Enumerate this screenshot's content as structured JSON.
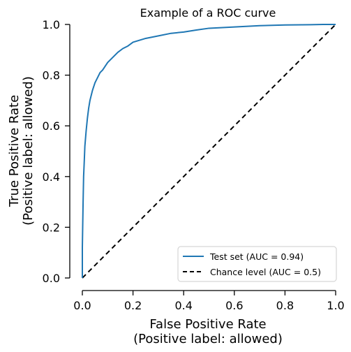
{
  "chart_data": {
    "type": "line",
    "title": "Example of a ROC curve",
    "xlabel": [
      "False Positive Rate",
      "(Positive label: allowed)"
    ],
    "ylabel": [
      "True Positive Rate",
      "(Positive label: allowed)"
    ],
    "xlim": [
      0,
      1
    ],
    "ylim": [
      0,
      1
    ],
    "xticks": [
      0.0,
      0.2,
      0.4,
      0.6,
      0.8,
      1.0
    ],
    "yticks": [
      0.0,
      0.2,
      0.4,
      0.6,
      0.8,
      1.0
    ],
    "xtick_labels": [
      "0.0",
      "0.2",
      "0.4",
      "0.6",
      "0.8",
      "1.0"
    ],
    "ytick_labels": [
      "0.0",
      "0.2",
      "0.4",
      "0.6",
      "0.8",
      "1.0"
    ],
    "grid": false,
    "legend_position": "lower-right",
    "series": [
      {
        "name": "Test set (AUC = 0.94)",
        "color": "#1f77b4",
        "style": "solid",
        "x": [
          0.0,
          0.0,
          0.003,
          0.005,
          0.008,
          0.01,
          0.015,
          0.02,
          0.025,
          0.03,
          0.04,
          0.05,
          0.06,
          0.07,
          0.08,
          0.1,
          0.12,
          0.14,
          0.16,
          0.18,
          0.2,
          0.25,
          0.3,
          0.35,
          0.4,
          0.45,
          0.5,
          0.6,
          0.7,
          0.8,
          0.9,
          0.95,
          1.0
        ],
        "y": [
          0.0,
          0.12,
          0.3,
          0.4,
          0.47,
          0.52,
          0.58,
          0.63,
          0.67,
          0.7,
          0.74,
          0.77,
          0.79,
          0.81,
          0.82,
          0.85,
          0.87,
          0.89,
          0.905,
          0.915,
          0.93,
          0.945,
          0.955,
          0.965,
          0.97,
          0.978,
          0.985,
          0.99,
          0.995,
          0.998,
          0.999,
          1.0,
          1.0
        ]
      },
      {
        "name": "Chance level (AUC = 0.5)",
        "color": "#000000",
        "style": "dashed",
        "x": [
          0.0,
          1.0
        ],
        "y": [
          0.0,
          1.0
        ]
      }
    ]
  }
}
